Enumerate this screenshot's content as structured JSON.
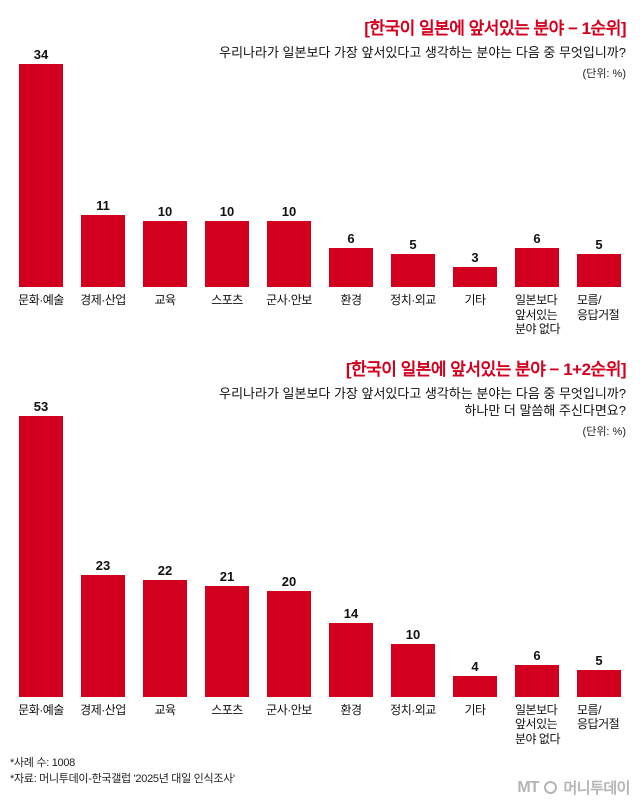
{
  "brand_color": "#d2001e",
  "chart_data": [
    {
      "type": "bar",
      "title": "[한국이 일본에 앞서있는 분야 − 1순위]",
      "subtitle_lines": [
        "우리나라가 일본보다 가장 앞서있다고 생각하는 분야는 다음 중 무엇입니까?"
      ],
      "unit_label": "(단위: %)",
      "categories": [
        "문화·예술",
        "경제·산업",
        "교육",
        "스포츠",
        "군사·안보",
        "환경",
        "정치·외교",
        "기타",
        "일본보다 앞서있는 분야 없다",
        "모름/응답거절"
      ],
      "category_lines": [
        [
          "문화·예술"
        ],
        [
          "경제·산업"
        ],
        [
          "교육"
        ],
        [
          "스포츠"
        ],
        [
          "군사·안보"
        ],
        [
          "환경"
        ],
        [
          "정치·외교"
        ],
        [
          "기타"
        ],
        [
          "일본보다",
          "앞서있는",
          "분야 없다"
        ],
        [
          "모름/",
          "응답거절"
        ]
      ],
      "values": [
        34,
        11,
        10,
        10,
        10,
        6,
        5,
        3,
        6,
        5
      ],
      "bar_color": "#d2001e",
      "ylim": [
        0,
        34
      ],
      "grid": false,
      "legend": "none"
    },
    {
      "type": "bar",
      "title": "[한국이 일본에 앞서있는 분야 − 1+2순위]",
      "subtitle_lines": [
        "우리나라가 일본보다 가장 앞서있다고 생각하는 분야는 다음 중 무엇입니까?",
        "하나만 더 말씀해 주신다면요?"
      ],
      "unit_label": "(단위: %)",
      "categories": [
        "문화·예술",
        "경제·산업",
        "교육",
        "스포츠",
        "군사·안보",
        "환경",
        "정치·외교",
        "기타",
        "일본보다 앞서있는 분야 없다",
        "모름/응답거절"
      ],
      "category_lines": [
        [
          "문화·예술"
        ],
        [
          "경제·산업"
        ],
        [
          "교육"
        ],
        [
          "스포츠"
        ],
        [
          "군사·안보"
        ],
        [
          "환경"
        ],
        [
          "정치·외교"
        ],
        [
          "기타"
        ],
        [
          "일본보다",
          "앞서있는",
          "분야 없다"
        ],
        [
          "모름/",
          "응답거절"
        ]
      ],
      "values": [
        53,
        23,
        22,
        21,
        20,
        14,
        10,
        4,
        6,
        5
      ],
      "bar_color": "#d2001e",
      "ylim": [
        0,
        53
      ],
      "grid": false,
      "legend": "none"
    }
  ],
  "footnotes": [
    "*사례 수: 1008",
    "*자료: 머니투데이-한국갤럽 '2025년 대일 인식조사'"
  ],
  "logo": {
    "mark": "MT",
    "text": "머니투데이"
  }
}
